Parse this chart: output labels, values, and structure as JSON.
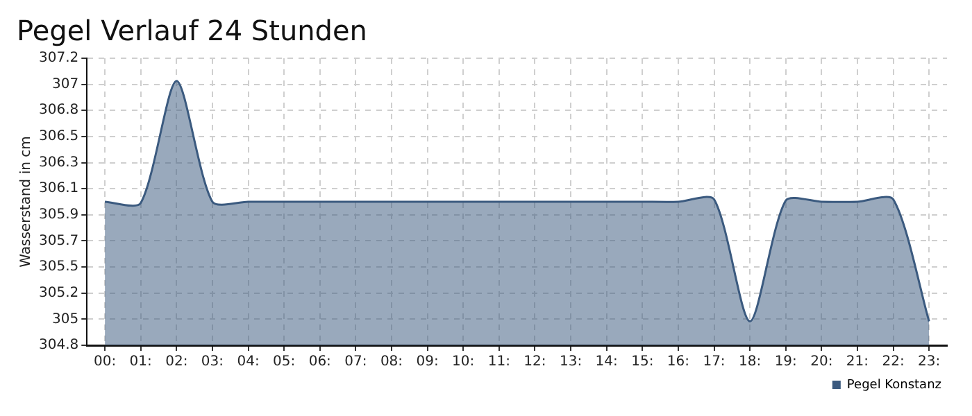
{
  "chart_data": {
    "type": "area",
    "title": "Pegel Verlauf 24 Stunden",
    "ylabel": "Wasserstand in cm",
    "x": [
      0,
      1,
      2,
      3,
      4,
      5,
      6,
      7,
      8,
      9,
      10,
      11,
      12,
      13,
      14,
      15,
      16,
      17,
      18,
      19,
      20,
      21,
      22,
      23
    ],
    "xlim": [
      -0.5,
      23.5
    ],
    "xticks": [
      {
        "value": 0,
        "label": "00:"
      },
      {
        "value": 1,
        "label": "01:"
      },
      {
        "value": 2,
        "label": "02:"
      },
      {
        "value": 3,
        "label": "03:"
      },
      {
        "value": 4,
        "label": "04:"
      },
      {
        "value": 5,
        "label": "05:"
      },
      {
        "value": 6,
        "label": "06:"
      },
      {
        "value": 7,
        "label": "07:"
      },
      {
        "value": 8,
        "label": "08:"
      },
      {
        "value": 9,
        "label": "09:"
      },
      {
        "value": 10,
        "label": "10:"
      },
      {
        "value": 11,
        "label": "11:"
      },
      {
        "value": 12,
        "label": "12:"
      },
      {
        "value": 13,
        "label": "13:"
      },
      {
        "value": 14,
        "label": "14:"
      },
      {
        "value": 15,
        "label": "15:"
      },
      {
        "value": 16,
        "label": "16:"
      },
      {
        "value": 17,
        "label": "17:"
      },
      {
        "value": 18,
        "label": "18:"
      },
      {
        "value": 19,
        "label": "19:"
      },
      {
        "value": 20,
        "label": "20:"
      },
      {
        "value": 21,
        "label": "21:"
      },
      {
        "value": 22,
        "label": "22:"
      },
      {
        "value": 23,
        "label": "23:"
      }
    ],
    "series": [
      {
        "name": "Pegel Konstanz",
        "color": "#3b5a7f",
        "values": [
          306.0,
          305.99,
          307.01,
          306.0,
          306.0,
          306.0,
          306.0,
          306.0,
          306.0,
          306.0,
          306.0,
          306.0,
          306.0,
          306.0,
          306.0,
          306.0,
          306.0,
          306.02,
          305.0,
          306.01,
          306.0,
          306.0,
          306.02,
          305.0
        ]
      }
    ],
    "ylim": [
      304.8,
      307.2
    ],
    "yticks": [
      {
        "value": 304.8,
        "label": "304.8"
      },
      {
        "value": 305.018,
        "label": "305"
      },
      {
        "value": 305.236,
        "label": "305.2"
      },
      {
        "value": 305.455,
        "label": "305.5"
      },
      {
        "value": 305.673,
        "label": "305.7"
      },
      {
        "value": 305.891,
        "label": "305.9"
      },
      {
        "value": 306.109,
        "label": "306.1"
      },
      {
        "value": 306.327,
        "label": "306.3"
      },
      {
        "value": 306.545,
        "label": "306.5"
      },
      {
        "value": 306.764,
        "label": "306.8"
      },
      {
        "value": 306.982,
        "label": "307"
      },
      {
        "value": 307.2,
        "label": "307.2"
      }
    ],
    "grid": true,
    "legend": "bottom right",
    "marker": "none",
    "line_style": "solid"
  }
}
